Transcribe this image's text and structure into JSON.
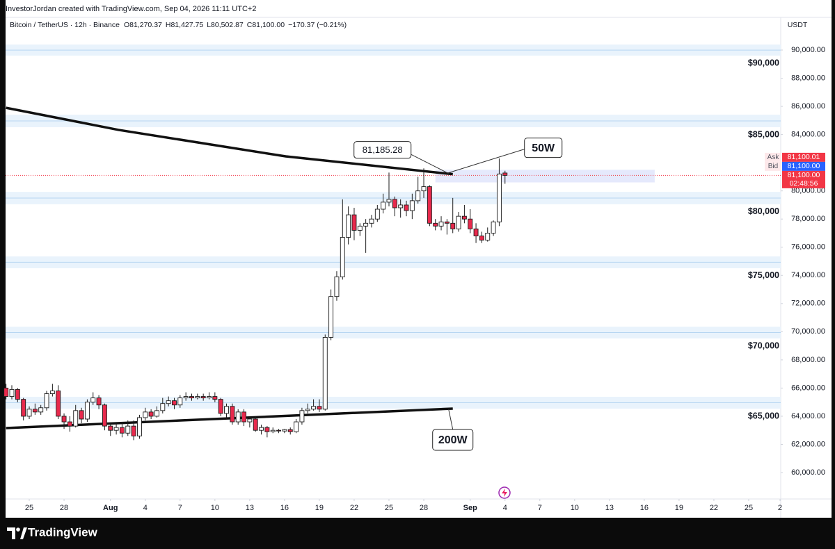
{
  "chart_data": {
    "type": "candlestick",
    "credit": "InvestorJordan created with TradingView.com, Sep 04, 2026 11:11 UTC+2",
    "title": "Bitcoin / TetherUS · 12h · Binance",
    "ohlc_legend": [
      {
        "key": "O",
        "value": "81,270.37"
      },
      {
        "key": "H",
        "value": "81,427.75"
      },
      {
        "key": "L",
        "value": "80,502.87"
      },
      {
        "key": "C",
        "value": "81,100.00"
      }
    ],
    "change": "−170.37 (−0.21%)",
    "currency": "USDT",
    "brand": "TradingView",
    "up_color": "#ffffff",
    "down_color": "#e8294c",
    "outline_color": "#1b1b1b",
    "xlim": [
      -2.04,
      64.76
    ],
    "ylim": [
      58125,
      92320
    ],
    "xticks": [
      {
        "value": 0,
        "label": "25"
      },
      {
        "value": 3,
        "label": "28"
      },
      {
        "value": 7,
        "label": "Aug"
      },
      {
        "value": 10,
        "label": "4"
      },
      {
        "value": 13,
        "label": "7"
      },
      {
        "value": 16,
        "label": "10"
      },
      {
        "value": 19,
        "label": "13"
      },
      {
        "value": 22,
        "label": "16"
      },
      {
        "value": 25,
        "label": "19"
      },
      {
        "value": 28,
        "label": "22"
      },
      {
        "value": 31,
        "label": "25"
      },
      {
        "value": 34,
        "label": "28"
      },
      {
        "value": 38,
        "label": "Sep"
      },
      {
        "value": 41,
        "label": "4"
      },
      {
        "value": 44,
        "label": "7"
      },
      {
        "value": 47,
        "label": "10"
      },
      {
        "value": 50,
        "label": "13"
      },
      {
        "value": 53,
        "label": "16"
      },
      {
        "value": 56,
        "label": "19"
      },
      {
        "value": 59,
        "label": "22"
      },
      {
        "value": 62,
        "label": "25"
      },
      {
        "value": 64.7,
        "label": "2"
      }
    ],
    "yticks": [
      {
        "value": 90000,
        "label": "90,000.00"
      },
      {
        "value": 88000,
        "label": "88,000.00"
      },
      {
        "value": 86000,
        "label": "86,000.00"
      },
      {
        "value": 84000,
        "label": "84,000.00"
      },
      {
        "value": 80000,
        "label": "80,000.00"
      },
      {
        "value": 78000,
        "label": "78,000.00"
      },
      {
        "value": 76000,
        "label": "76,000.00"
      },
      {
        "value": 74000,
        "label": "74,000.00"
      },
      {
        "value": 72000,
        "label": "72,000.00"
      },
      {
        "value": 70000,
        "label": "70,000.00"
      },
      {
        "value": 68000,
        "label": "68,000.00"
      },
      {
        "value": 66000,
        "label": "66,000.00"
      },
      {
        "value": 64000,
        "label": "64,000.00"
      },
      {
        "value": 62000,
        "label": "62,000.00"
      },
      {
        "value": 60000,
        "label": "60,000.00"
      }
    ],
    "zones": [
      {
        "label": "$90,000",
        "low": 89600,
        "high": 90390
      },
      {
        "label": "$85,000",
        "low": 84520,
        "high": 85410
      },
      {
        "label": "$80,000",
        "low": 79050,
        "high": 79930
      },
      {
        "label": "$75,000",
        "low": 74510,
        "high": 75350
      },
      {
        "label": "$70,000",
        "low": 69520,
        "high": 70360
      },
      {
        "label": "$65,000",
        "low": 64540,
        "high": 65380
      }
    ],
    "highlight_zone": {
      "x": [
        35,
        53.9
      ],
      "low": 80600,
      "high": 81500,
      "color": "#dfe3fb"
    },
    "x": [
      -2,
      -1.5,
      -1,
      -0.5,
      0,
      0.5,
      1,
      1.5,
      2,
      2.5,
      3,
      3.5,
      4,
      4.5,
      5,
      5.5,
      6,
      6.5,
      7,
      7.5,
      8,
      8.5,
      9,
      9.5,
      10,
      10.5,
      11,
      11.5,
      12,
      12.5,
      13,
      13.5,
      14,
      14.5,
      15,
      15.5,
      16,
      16.5,
      17,
      17.5,
      18,
      18.5,
      19,
      19.5,
      20,
      20.5,
      21,
      21.5,
      22,
      22.5,
      23,
      23.5,
      24,
      24.5,
      25,
      25.5,
      26,
      26.5,
      27,
      27.5,
      28,
      28.5,
      29,
      29.5,
      30,
      30.5,
      31,
      31.5,
      32,
      32.5,
      33,
      33.5,
      34,
      34.5,
      35,
      35.5,
      36,
      36.5,
      37,
      37.5,
      38,
      38.5,
      39,
      39.5,
      40,
      40.5,
      41
    ],
    "candles": [
      [
        66000,
        66300,
        65200,
        65400
      ],
      [
        65400,
        66200,
        65200,
        65900
      ],
      [
        65900,
        66000,
        65000,
        65200
      ],
      [
        65200,
        65300,
        63700,
        64000
      ],
      [
        64000,
        64700,
        63800,
        64500
      ],
      [
        64500,
        64900,
        64100,
        64300
      ],
      [
        64300,
        64800,
        64100,
        64600
      ],
      [
        64600,
        65800,
        64400,
        65600
      ],
      [
        65600,
        66300,
        65400,
        65800
      ],
      [
        65800,
        66200,
        63800,
        64000
      ],
      [
        64000,
        64200,
        63100,
        63600
      ],
      [
        63600,
        64000,
        62900,
        63300
      ],
      [
        63300,
        64800,
        63200,
        64400
      ],
      [
        64400,
        64600,
        63500,
        63800
      ],
      [
        63800,
        65200,
        63600,
        65000
      ],
      [
        65000,
        65700,
        64800,
        65300
      ],
      [
        65300,
        65500,
        64500,
        64800
      ],
      [
        64800,
        64900,
        63000,
        63300
      ],
      [
        63300,
        63500,
        62600,
        63000
      ],
      [
        63000,
        63500,
        62700,
        63200
      ],
      [
        63200,
        63600,
        62500,
        62800
      ],
      [
        62800,
        63700,
        62600,
        63300
      ],
      [
        63300,
        63700,
        62300,
        62600
      ],
      [
        62600,
        64100,
        62400,
        63900
      ],
      [
        63900,
        64600,
        63700,
        64300
      ],
      [
        64300,
        64500,
        63800,
        64000
      ],
      [
        64000,
        64700,
        63900,
        64400
      ],
      [
        64400,
        65300,
        64200,
        64900
      ],
      [
        64900,
        65400,
        64700,
        65100
      ],
      [
        65100,
        65300,
        64500,
        64800
      ],
      [
        64800,
        65500,
        64600,
        65300
      ],
      [
        65300,
        65700,
        65100,
        65400
      ],
      [
        65400,
        65600,
        65100,
        65300
      ],
      [
        65300,
        65600,
        65200,
        65400
      ],
      [
        65400,
        65600,
        65100,
        65300
      ],
      [
        65300,
        65700,
        65200,
        65400
      ],
      [
        65400,
        65700,
        65000,
        65200
      ],
      [
        65200,
        65300,
        64000,
        64200
      ],
      [
        64200,
        64900,
        63800,
        64700
      ],
      [
        64700,
        64900,
        63400,
        63600
      ],
      [
        63600,
        64500,
        63400,
        64300
      ],
      [
        64300,
        64500,
        63300,
        63600
      ],
      [
        63600,
        64000,
        63200,
        63800
      ],
      [
        63800,
        64000,
        62900,
        63000
      ],
      [
        63000,
        63400,
        62700,
        63200
      ],
      [
        63200,
        63300,
        62500,
        62900
      ],
      [
        62900,
        63200,
        62800,
        63000
      ],
      [
        63000,
        63100,
        62800,
        62950
      ],
      [
        62950,
        63100,
        62800,
        63050
      ],
      [
        63050,
        63200,
        62700,
        62900
      ],
      [
        62900,
        63800,
        62800,
        63600
      ],
      [
        63600,
        64600,
        63400,
        64400
      ],
      [
        64400,
        64900,
        64200,
        64500
      ],
      [
        64500,
        65200,
        64400,
        64700
      ],
      [
        64700,
        65200,
        64300,
        64500
      ],
      [
        64500,
        69800,
        64400,
        69600
      ],
      [
        69600,
        73000,
        69400,
        72500
      ],
      [
        72500,
        74300,
        72200,
        73900
      ],
      [
        73900,
        79400,
        73700,
        76700
      ],
      [
        76700,
        78900,
        76200,
        78300
      ],
      [
        78300,
        78800,
        76500,
        77200
      ],
      [
        77200,
        77700,
        76800,
        77500
      ],
      [
        77500,
        78000,
        75600,
        77700
      ],
      [
        77700,
        78300,
        77400,
        78000
      ],
      [
        78000,
        79000,
        77800,
        78700
      ],
      [
        78700,
        79800,
        78400,
        79200
      ],
      [
        79200,
        81300,
        78900,
        79400
      ],
      [
        79400,
        79600,
        78200,
        78800
      ],
      [
        78800,
        79400,
        78100,
        79000
      ],
      [
        79000,
        79300,
        78200,
        78600
      ],
      [
        78600,
        79800,
        78000,
        79300
      ],
      [
        79300,
        81000,
        79100,
        80000
      ],
      [
        80000,
        81600,
        79500,
        80300
      ],
      [
        80300,
        80400,
        77500,
        77700
      ],
      [
        77700,
        78000,
        77200,
        77500
      ],
      [
        77500,
        78200,
        77200,
        77800
      ],
      [
        77800,
        78000,
        76900,
        77700
      ],
      [
        77700,
        79500,
        77000,
        77300
      ],
      [
        77300,
        78500,
        77100,
        78200
      ],
      [
        78200,
        79000,
        77700,
        78000
      ],
      [
        78000,
        78700,
        77000,
        77300
      ],
      [
        77300,
        77700,
        76300,
        76800
      ],
      [
        76800,
        77100,
        76300,
        76500
      ],
      [
        76500,
        77400,
        76400,
        77000
      ],
      [
        77000,
        77900,
        76800,
        77800
      ],
      [
        77800,
        82300,
        77500,
        81200
      ],
      [
        81270.37,
        81427.75,
        80502.87,
        81100
      ]
    ],
    "trendlines": [
      {
        "label": "50W",
        "points": [
          [
            -2,
            85900
          ],
          [
            7.7,
            84330
          ],
          [
            22.1,
            82450
          ],
          [
            36.5,
            81185.28
          ]
        ]
      },
      {
        "label": "200W",
        "points": [
          [
            -2,
            63160
          ],
          [
            36.5,
            64540
          ]
        ]
      }
    ],
    "annotations": [
      {
        "text": "81,185.28"
      }
    ],
    "last": {
      "value": 81100,
      "label": "81,100.00",
      "countdown": "02:48:56",
      "color": "#f23645"
    },
    "quotes": [
      {
        "tag": "Ask",
        "value": 81100.01,
        "label": "81,100.01",
        "color": "#f23645"
      },
      {
        "tag": "Bid",
        "value": 81100.0,
        "label": "81,100.00",
        "color": "#2962ff"
      }
    ]
  }
}
